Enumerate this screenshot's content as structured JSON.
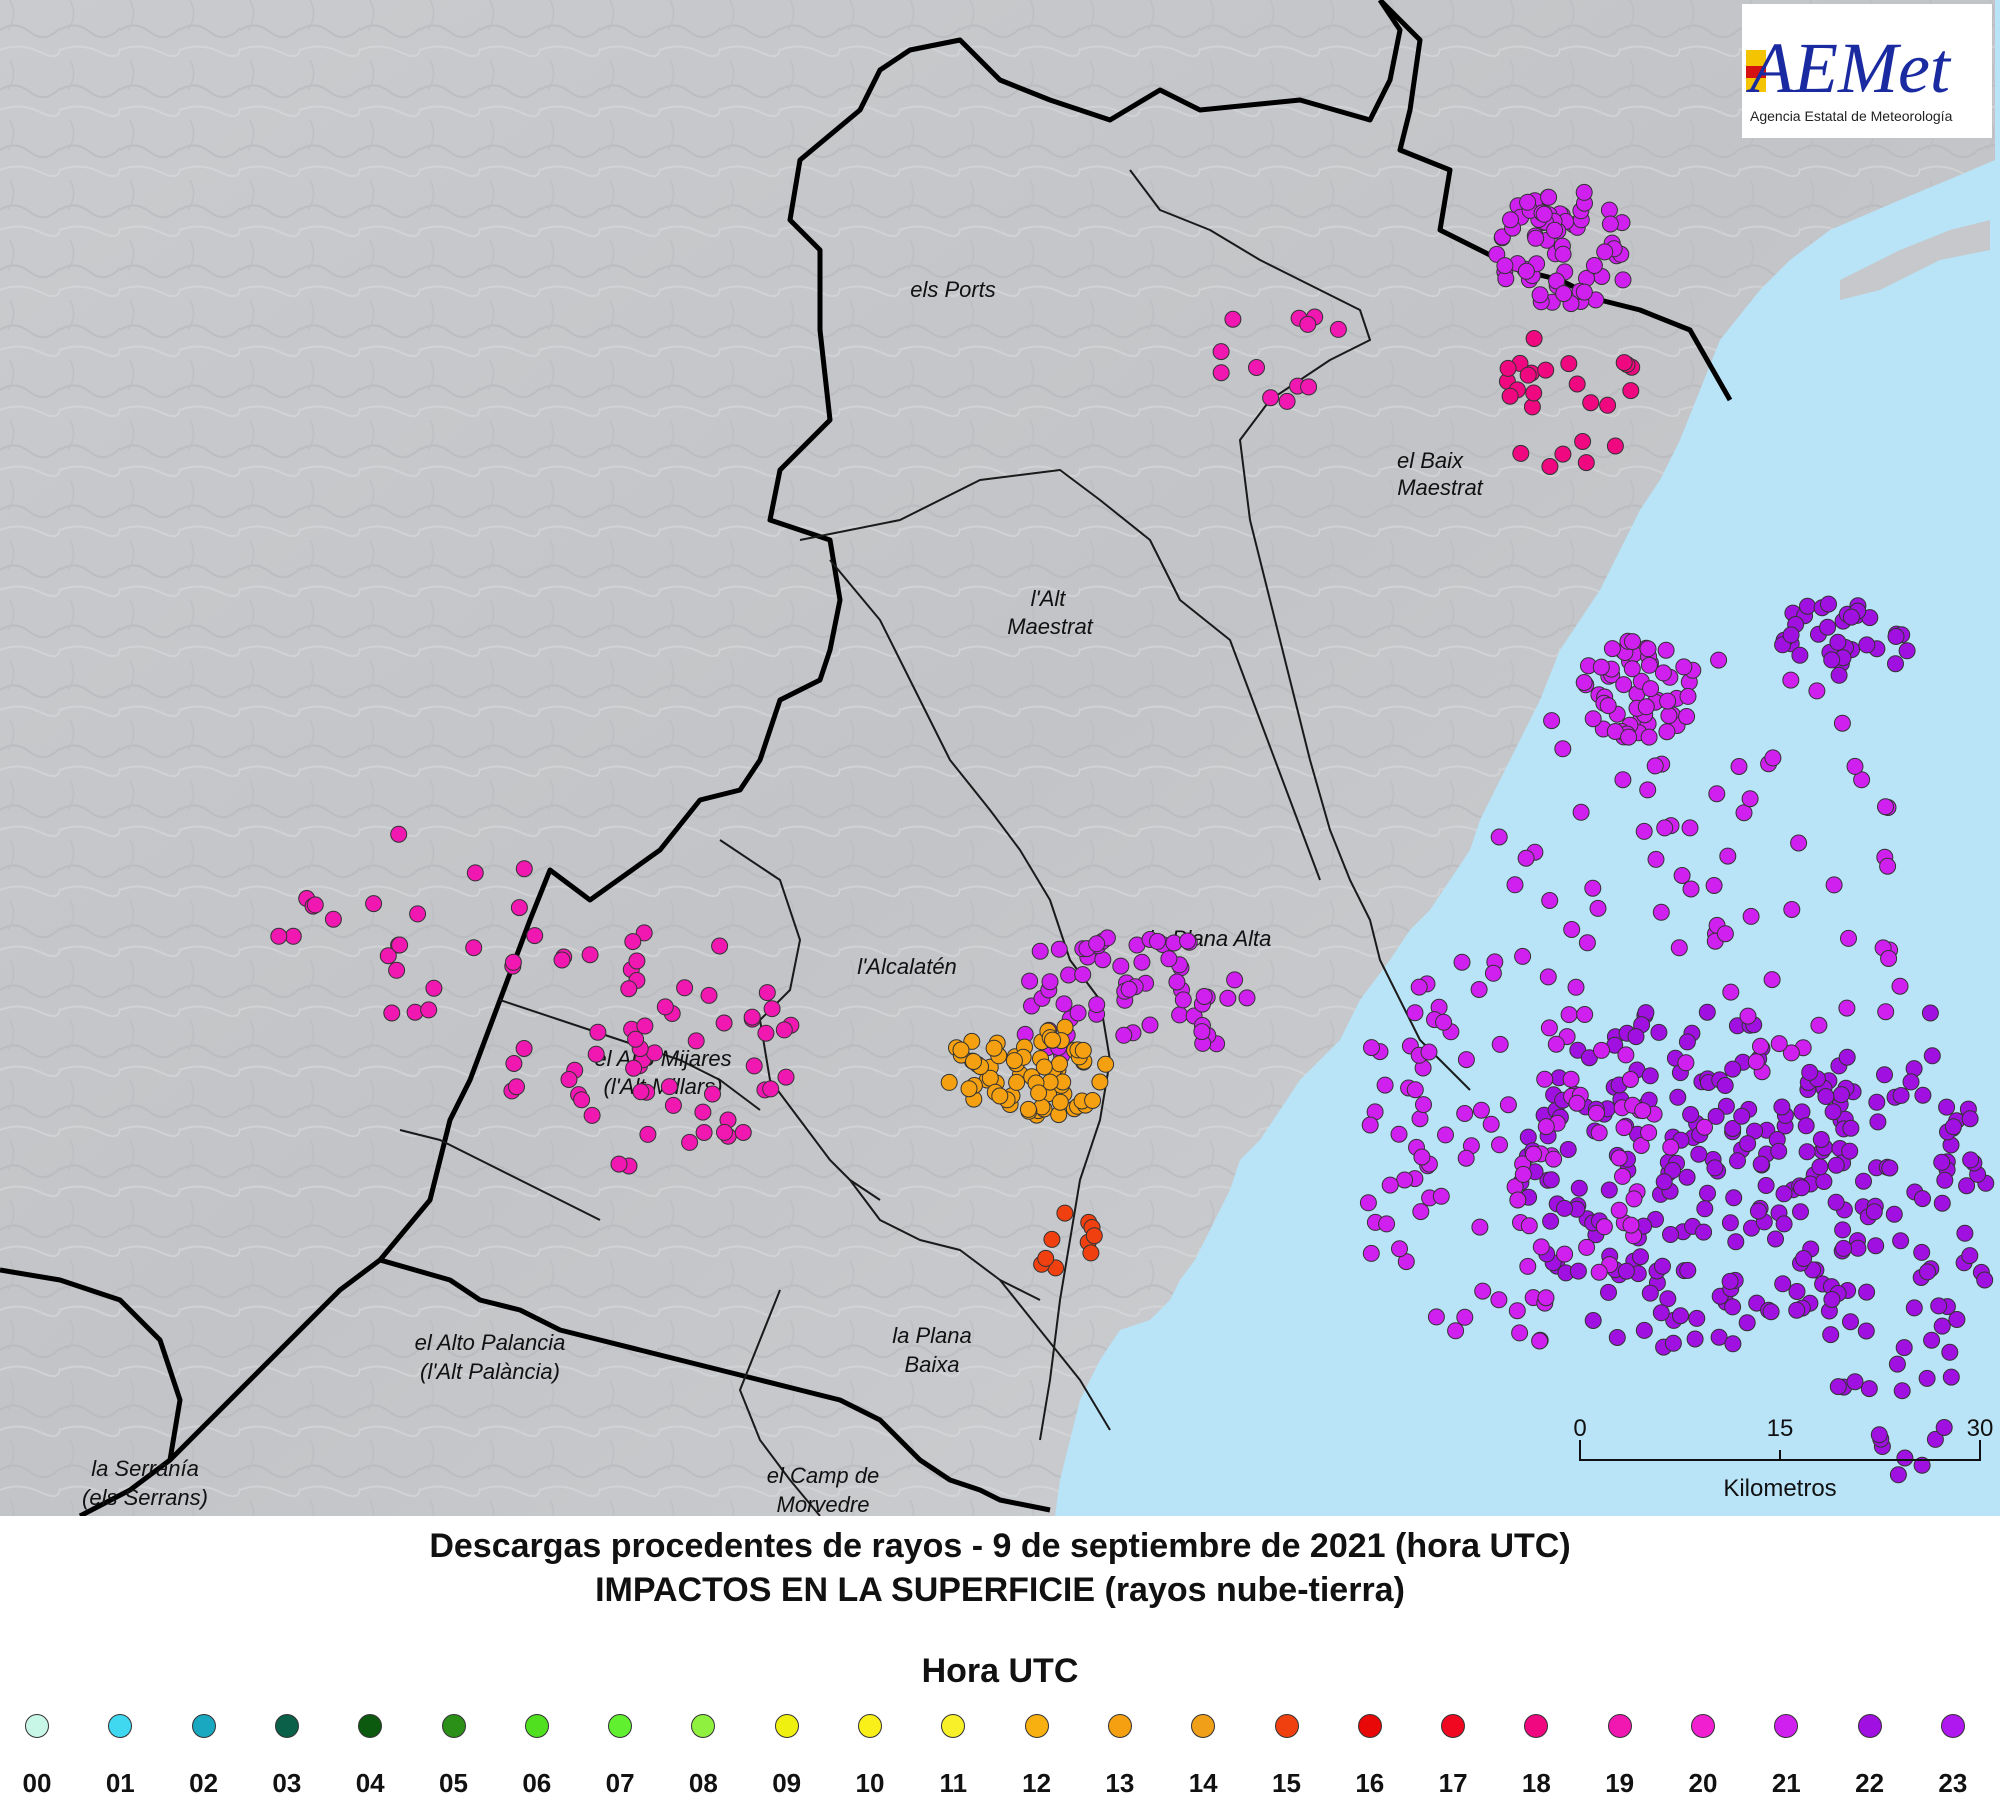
{
  "map": {
    "regions": [
      {
        "name": "els-ports",
        "lines": [
          "els Ports"
        ]
      },
      {
        "name": "baix-maestrat",
        "lines": [
          "el Baix",
          "Maestrat"
        ]
      },
      {
        "name": "alt-maestrat",
        "lines": [
          "l'Alt",
          "Maestrat"
        ]
      },
      {
        "name": "alcalaten",
        "lines": [
          "l'Alcalatén"
        ]
      },
      {
        "name": "plana-alta",
        "lines": [
          "la Plana Alta"
        ]
      },
      {
        "name": "alto-mijares",
        "lines": [
          "el Alto Mijares",
          "(l'Alt Millars)"
        ]
      },
      {
        "name": "alto-palancia",
        "lines": [
          "el Alto Palancia",
          "(l'Alt Palància)"
        ]
      },
      {
        "name": "plana-baixa",
        "lines": [
          "la Plana",
          "Baixa"
        ]
      },
      {
        "name": "serrania",
        "lines": [
          "la Serranía",
          "(els Serrans)"
        ]
      },
      {
        "name": "camp-morvedre",
        "lines": [
          "el Camp de",
          "Morvedre"
        ]
      }
    ],
    "scale_bar": {
      "ticks": [
        "0",
        "15",
        "30"
      ],
      "unit": "Kilometros"
    }
  },
  "logo": {
    "brand": "AEMet",
    "subtitle": "Agencia Estatal de Meteorología"
  },
  "title": {
    "line1": "Descargas procedentes de rayos - 9 de septiembre de 2021 (hora UTC)",
    "line2": "IMPACTOS EN LA SUPERFICIE (rayos nube-tierra)"
  },
  "legend": {
    "title": "Hora UTC",
    "items": [
      {
        "label": "00",
        "color": "#c8f7e8"
      },
      {
        "label": "01",
        "color": "#40d8f0"
      },
      {
        "label": "02",
        "color": "#1aa8c0"
      },
      {
        "label": "03",
        "color": "#0a6048"
      },
      {
        "label": "04",
        "color": "#0c5a10"
      },
      {
        "label": "05",
        "color": "#2a9018"
      },
      {
        "label": "06",
        "color": "#50e020"
      },
      {
        "label": "07",
        "color": "#60f030"
      },
      {
        "label": "08",
        "color": "#90f040"
      },
      {
        "label": "09",
        "color": "#f0f010"
      },
      {
        "label": "10",
        "color": "#f8f018"
      },
      {
        "label": "11",
        "color": "#f8f028"
      },
      {
        "label": "12",
        "color": "#f8b010"
      },
      {
        "label": "13",
        "color": "#f4a010"
      },
      {
        "label": "14",
        "color": "#f0a018"
      },
      {
        "label": "15",
        "color": "#f04010"
      },
      {
        "label": "16",
        "color": "#e80808"
      },
      {
        "label": "17",
        "color": "#f00820"
      },
      {
        "label": "18",
        "color": "#f00880"
      },
      {
        "label": "19",
        "color": "#f018b0"
      },
      {
        "label": "20",
        "color": "#f020d0"
      },
      {
        "label": "21",
        "color": "#d020f0"
      },
      {
        "label": "22",
        "color": "#a010e0"
      },
      {
        "label": "23",
        "color": "#b018f0"
      }
    ]
  }
}
